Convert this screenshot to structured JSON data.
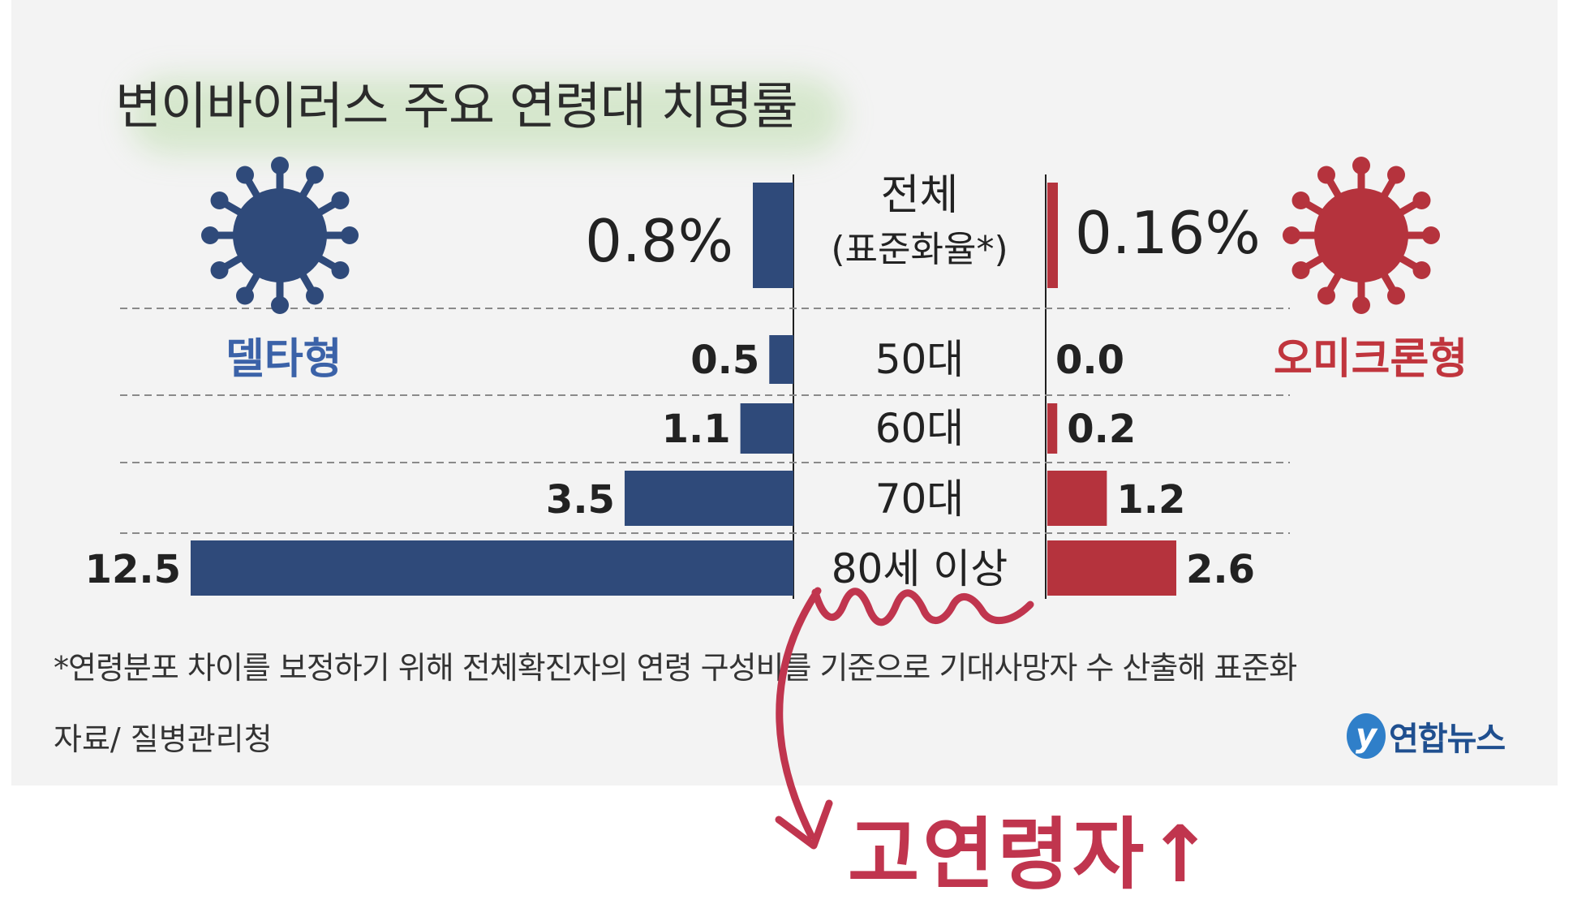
{
  "title": "변이바이러스 주요 연령대 치명률",
  "chart_data": {
    "type": "bar",
    "orientation": "horizontal-diverging",
    "title": "변이바이러스 주요 연령대 치명률",
    "categories": [
      "50대",
      "60대",
      "70대",
      "80세 이상"
    ],
    "series": [
      {
        "name": "델타형",
        "values": [
          0.5,
          1.1,
          3.5,
          12.5
        ],
        "labels": [
          "0.5",
          "1.1",
          "3.5",
          "12.5"
        ],
        "color": "#2f4a7a"
      },
      {
        "name": "오미크론형",
        "values": [
          0.0,
          0.2,
          1.2,
          2.6
        ],
        "labels": [
          "0.0",
          "0.2",
          "1.2",
          "2.6"
        ],
        "color": "#b5333d"
      }
    ],
    "overall": {
      "label": "전체",
      "sublabel": "(표준화율*)",
      "values": [
        0.8,
        0.16
      ],
      "labels": [
        "0.8%",
        "0.16%"
      ]
    }
  },
  "groups": {
    "left_label": "델타형",
    "right_label": "오미크론형"
  },
  "footnote": "*연령분포 차이를 보정하기 위해 전체확진자의 연령 구성비를 기준으로 기대사망자 수 산출해 표준화",
  "source": "자료/ 질병관리청",
  "logo": {
    "mark": "y",
    "text": "연합뉴스"
  },
  "annotation": {
    "text": "고연령자↑"
  },
  "colors": {
    "delta": "#2f4a7a",
    "omicron": "#b5333d",
    "annotation": "#c0354e",
    "panel": "#f3f3f3"
  }
}
